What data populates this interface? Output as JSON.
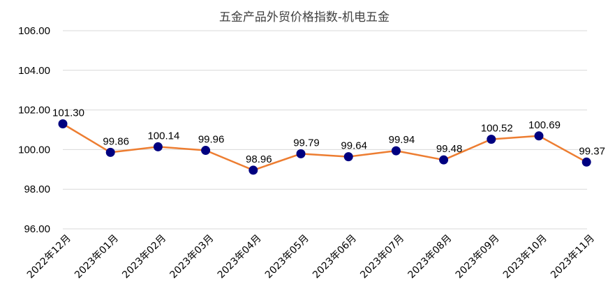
{
  "chart_data": {
    "type": "line",
    "title": "五金产品外贸价格指数-机电五金",
    "categories": [
      "2022年12月",
      "2023年01月",
      "2023年02月",
      "2023年03月",
      "2023年04月",
      "2023年05月",
      "2023年06月",
      "2023年07月",
      "2023年08月",
      "2023年09月",
      "2023年10月",
      "2023年11月"
    ],
    "values": [
      101.3,
      99.86,
      100.14,
      99.96,
      98.96,
      99.79,
      99.64,
      99.94,
      99.48,
      100.52,
      100.69,
      99.37
    ],
    "data_labels": [
      "101.30",
      "99.86",
      "100.14",
      "99.96",
      "98.96",
      "99.79",
      "99.64",
      "99.94",
      "99.48",
      "100.52",
      "100.69",
      "99.37"
    ],
    "ylim": [
      96,
      106
    ],
    "yticks": [
      96,
      98,
      100,
      102,
      104,
      106
    ],
    "ytick_labels": [
      "96.00",
      "98.00",
      "100.00",
      "102.00",
      "104.00",
      "106.00"
    ],
    "grid": true,
    "legend": "none",
    "colors": {
      "line": "#ED7D31",
      "marker": "#000080",
      "grid": "#D9D9D9"
    }
  }
}
